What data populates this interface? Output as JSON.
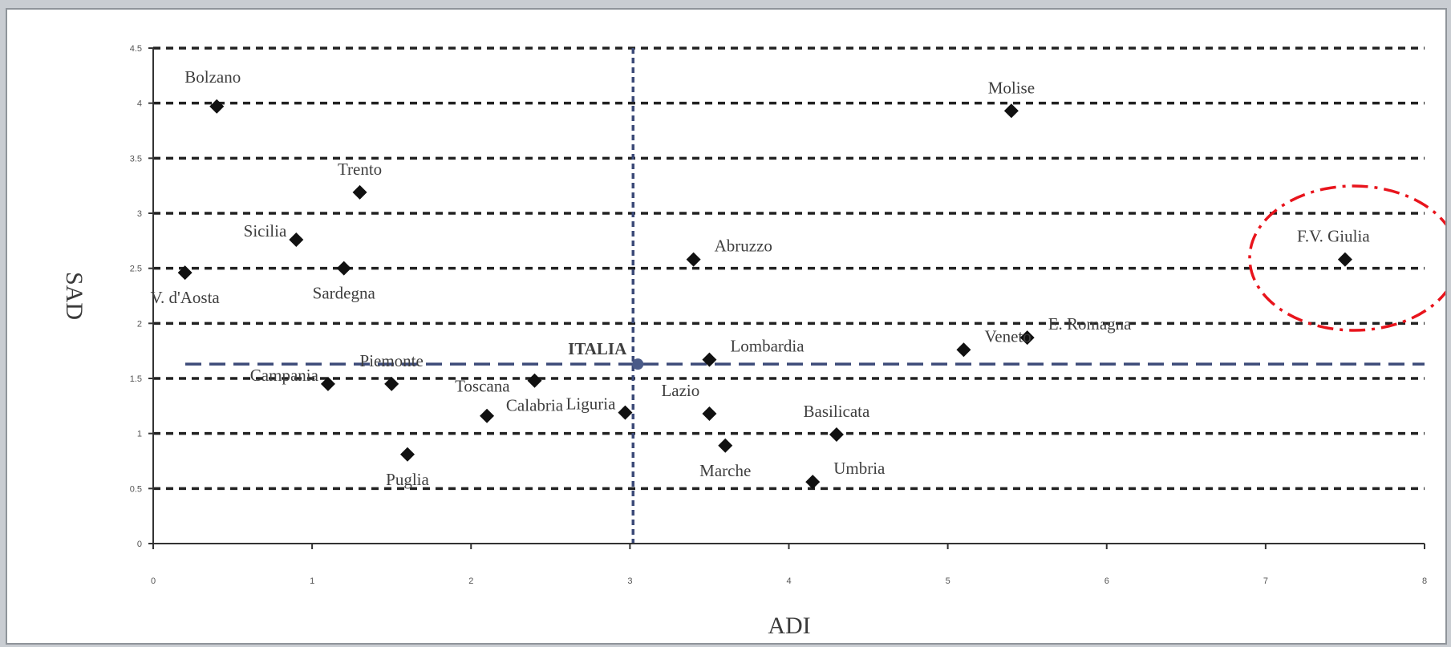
{
  "chart_data": {
    "type": "scatter",
    "title": "",
    "xlabel": "ADI",
    "ylabel": "SAD",
    "xlim": [
      0,
      8
    ],
    "ylim": [
      0,
      4.5
    ],
    "grid": "horizontal dashed lines at each y tick",
    "x_ticks": [
      "0",
      "1",
      "2",
      "3",
      "4",
      "5",
      "6",
      "7",
      "8"
    ],
    "y_ticks": [
      "0",
      "0.5",
      "1",
      "1.5",
      "2",
      "2.5",
      "3",
      "3.5",
      "4",
      "4.5"
    ],
    "reference": {
      "label": "ITALIA",
      "x": 3.05,
      "y": 1.63
    },
    "highlight": {
      "label": "F.V. Giulia",
      "style": "red dash-dot circle"
    },
    "points": [
      {
        "label": "Bolzano",
        "x": 0.4,
        "y": 3.97,
        "anchor": "nw"
      },
      {
        "label": "Molise",
        "x": 5.4,
        "y": 3.93,
        "anchor": "n"
      },
      {
        "label": "Trento",
        "x": 1.3,
        "y": 3.19,
        "anchor": "n"
      },
      {
        "label": "Sicilia",
        "x": 0.9,
        "y": 2.76,
        "anchor": "w"
      },
      {
        "label": "V. d'Aosta",
        "x": 0.2,
        "y": 2.46,
        "anchor": "s"
      },
      {
        "label": "Sardegna",
        "x": 1.2,
        "y": 2.5,
        "anchor": "s"
      },
      {
        "label": "Abruzzo",
        "x": 3.4,
        "y": 2.58,
        "anchor": "e"
      },
      {
        "label": "F.V. Giulia",
        "x": 7.5,
        "y": 2.58,
        "anchor": "ne"
      },
      {
        "label": "E. Romagna",
        "x": 5.5,
        "y": 1.87,
        "anchor": "e"
      },
      {
        "label": "Veneto",
        "x": 5.1,
        "y": 1.76,
        "anchor": "e"
      },
      {
        "label": "Lombardia",
        "x": 3.5,
        "y": 1.67,
        "anchor": "e"
      },
      {
        "label": "Piemonte",
        "x": 1.5,
        "y": 1.45,
        "anchor": "n"
      },
      {
        "label": "Campania",
        "x": 1.1,
        "y": 1.45,
        "anchor": "w"
      },
      {
        "label": "Calabria",
        "x": 2.4,
        "y": 1.48,
        "anchor": "s"
      },
      {
        "label": "Toscana",
        "x": 2.1,
        "y": 1.16,
        "anchor": "nw"
      },
      {
        "label": "Liguria",
        "x": 2.97,
        "y": 1.19,
        "anchor": "w"
      },
      {
        "label": "Lazio",
        "x": 3.5,
        "y": 1.18,
        "anchor": "ne"
      },
      {
        "label": "Basilicata",
        "x": 4.3,
        "y": 0.99,
        "anchor": "n"
      },
      {
        "label": "Marche",
        "x": 3.6,
        "y": 0.89,
        "anchor": "s"
      },
      {
        "label": "Puglia",
        "x": 1.6,
        "y": 0.81,
        "anchor": "s"
      },
      {
        "label": "Umbria",
        "x": 4.15,
        "y": 0.56,
        "anchor": "e"
      }
    ]
  }
}
